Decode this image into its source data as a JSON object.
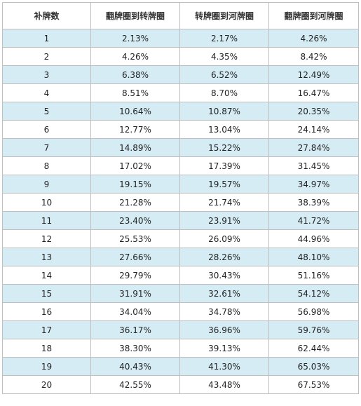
{
  "table": {
    "columns": [
      "补牌数",
      "翻牌圈到转牌圈",
      "转牌圈到河牌圈",
      "翻牌圈到河牌圈"
    ],
    "rows": [
      [
        "1",
        "2.13%",
        "2.17%",
        "4.26%"
      ],
      [
        "2",
        "4.26%",
        "4.35%",
        "8.42%"
      ],
      [
        "3",
        "6.38%",
        "6.52%",
        "12.49%"
      ],
      [
        "4",
        "8.51%",
        "8.70%",
        "16.47%"
      ],
      [
        "5",
        "10.64%",
        "10.87%",
        "20.35%"
      ],
      [
        "6",
        "12.77%",
        "13.04%",
        "24.14%"
      ],
      [
        "7",
        "14.89%",
        "15.22%",
        "27.84%"
      ],
      [
        "8",
        "17.02%",
        "17.39%",
        "31.45%"
      ],
      [
        "9",
        "19.15%",
        "19.57%",
        "34.97%"
      ],
      [
        "10",
        "21.28%",
        "21.74%",
        "38.39%"
      ],
      [
        "11",
        "23.40%",
        "23.91%",
        "41.72%"
      ],
      [
        "12",
        "25.53%",
        "26.09%",
        "44.96%"
      ],
      [
        "13",
        "27.66%",
        "28.26%",
        "48.10%"
      ],
      [
        "14",
        "29.79%",
        "30.43%",
        "51.16%"
      ],
      [
        "15",
        "31.91%",
        "32.61%",
        "54.12%"
      ],
      [
        "16",
        "34.04%",
        "34.78%",
        "56.98%"
      ],
      [
        "17",
        "36.17%",
        "36.96%",
        "59.76%"
      ],
      [
        "18",
        "38.30%",
        "39.13%",
        "62.44%"
      ],
      [
        "19",
        "40.43%",
        "41.30%",
        "65.03%"
      ],
      [
        "20",
        "42.55%",
        "43.48%",
        "67.53%"
      ]
    ]
  },
  "colors": {
    "row_stripe": "#d5ecf4",
    "row_plain": "#ffffff",
    "border": "#bfbfbf"
  }
}
